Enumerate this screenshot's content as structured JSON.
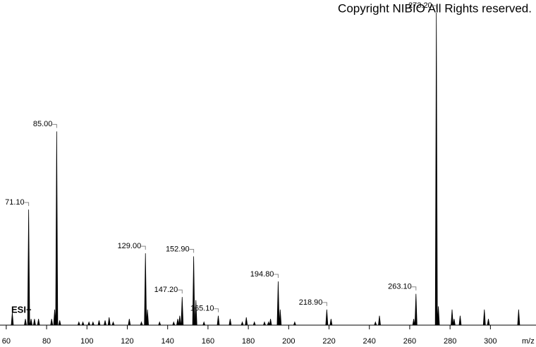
{
  "chart_data": {
    "type": "spectrum",
    "title": "Copyright NIBIO All Rights reserved.",
    "annotation": "ESI+",
    "x_label": "m/z",
    "color": "#000000",
    "xlim": [
      56.9,
      322.6
    ],
    "ylim": [
      0,
      100
    ],
    "xticks": [
      60,
      80,
      100,
      120,
      140,
      160,
      180,
      200,
      220,
      240,
      260,
      280,
      300
    ],
    "x": [
      63,
      69.5,
      {
        "value": 71.1,
        "label": "71.10"
      },
      72.3,
      74,
      76,
      82.5,
      84,
      {
        "value": 85.0,
        "label": "85.00"
      },
      86.5,
      96,
      98,
      101,
      103,
      106,
      109,
      111,
      113,
      121,
      127,
      {
        "value": 129.0,
        "label": "129.00"
      },
      130,
      136,
      143,
      145,
      146,
      {
        "value": 147.2,
        "label": "147.20"
      },
      {
        "value": 152.9,
        "label": "152.90"
      },
      154,
      158,
      {
        "value": 165.1,
        "label": "165.10"
      },
      171,
      177,
      179,
      183,
      188,
      190,
      191,
      {
        "value": 194.8,
        "label": "194.80"
      },
      195.8,
      203,
      {
        "value": 218.9,
        "label": "218.90"
      },
      221,
      243,
      245,
      262,
      {
        "value": 263.1,
        "label": "263.10"
      },
      {
        "value": 273.2,
        "label": "273.20"
      },
      274.2,
      281,
      282,
      285,
      297,
      299,
      314
    ],
    "values": [
      4,
      2,
      37,
      2,
      2,
      2,
      2,
      5,
      62,
      1.5,
      1,
      1,
      1,
      1,
      1.5,
      1.5,
      2.5,
      1,
      2,
      1,
      23,
      5,
      1,
      1,
      2,
      3,
      9,
      22,
      8,
      1,
      3,
      2,
      1,
      2.5,
      1,
      1,
      1,
      2,
      14,
      5,
      1,
      5,
      2,
      1,
      3,
      2,
      10,
      100,
      6,
      5,
      2,
      3,
      5,
      2,
      5
    ]
  }
}
